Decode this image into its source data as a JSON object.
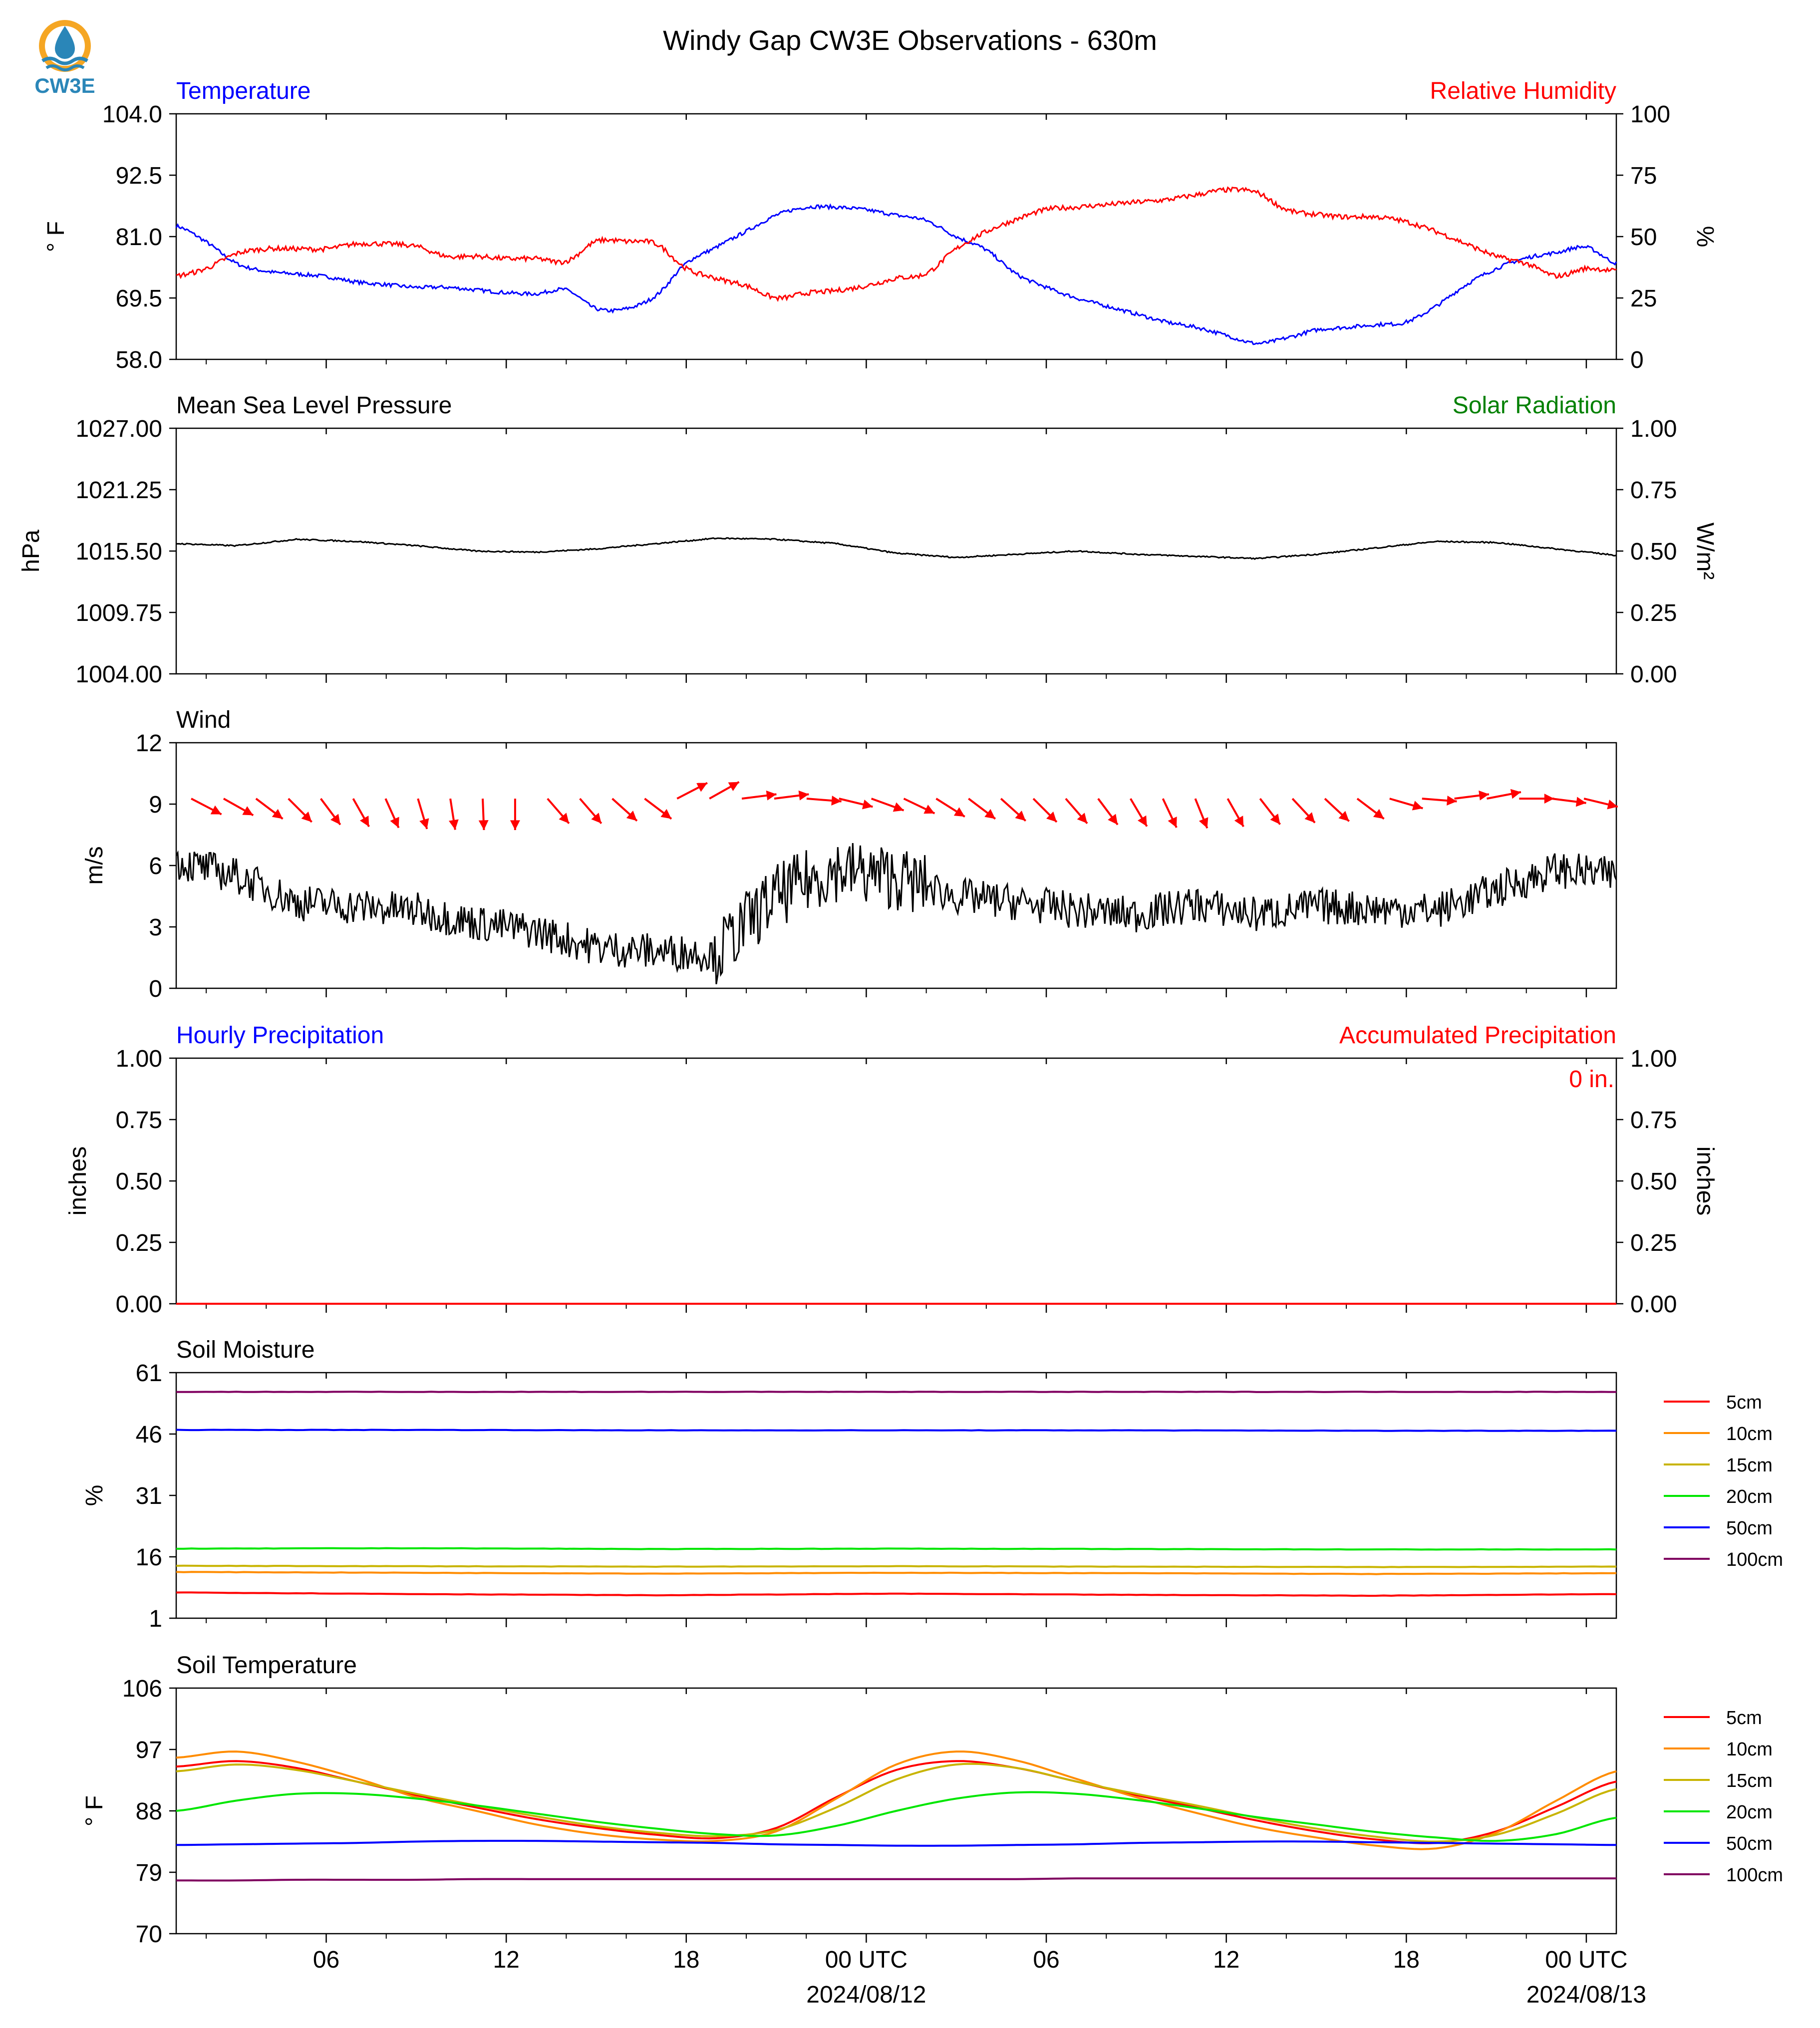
{
  "title": "Windy Gap CW3E Observations - 630m",
  "logo": {
    "text": "CW3E",
    "icon": "cw3e-logo-icon"
  },
  "x_axis": {
    "range_hours": [
      0,
      48
    ],
    "ticks": [
      {
        "h": 5,
        "label": "06",
        "sub": ""
      },
      {
        "h": 11,
        "label": "12",
        "sub": ""
      },
      {
        "h": 17,
        "label": "18",
        "sub": ""
      },
      {
        "h": 23,
        "label": "00 UTC",
        "sub": "2024/08/12"
      },
      {
        "h": 29,
        "label": "06",
        "sub": ""
      },
      {
        "h": 35,
        "label": "12",
        "sub": ""
      },
      {
        "h": 41,
        "label": "18",
        "sub": ""
      },
      {
        "h": 47,
        "label": "00 UTC",
        "sub": "2024/08/13"
      }
    ]
  },
  "panels": {
    "temp": {
      "left_title": "Temperature",
      "right_title": "Relative Humidity",
      "left_color": "#0000ff",
      "right_color": "#ff0000",
      "ylabel_left": "° F",
      "ylabel_right": "%",
      "ylim_left": [
        58.0,
        104.0
      ],
      "ylim_right": [
        0,
        100
      ],
      "ticks_left": [
        "58.0",
        "69.5",
        "81.0",
        "92.5",
        "104.0"
      ],
      "ticks_right": [
        "0",
        "25",
        "50",
        "75",
        "100"
      ]
    },
    "pressure": {
      "left_title": "Mean Sea Level Pressure",
      "right_title": "Solar Radiation",
      "left_color": "#000000",
      "right_color": "#008000",
      "ylabel_left": "hPa",
      "ylabel_right": "W/m²",
      "ylim_left": [
        1004.0,
        1027.0
      ],
      "ylim_right": [
        0,
        1
      ],
      "ticks_left": [
        "1004.00",
        "1009.75",
        "1015.50",
        "1021.25",
        "1027.00"
      ],
      "ticks_right": [
        "0.00",
        "0.25",
        "0.50",
        "0.75",
        "1.00"
      ]
    },
    "wind": {
      "left_title": "Wind",
      "ylabel_left": "m/s",
      "ylim_left": [
        0,
        12
      ],
      "ticks_left": [
        "0",
        "3",
        "6",
        "9",
        "12"
      ]
    },
    "precip": {
      "left_title": "Hourly Precipitation",
      "right_title": "Accumulated Precipitation",
      "left_color": "#0000ff",
      "right_color": "#ff0000",
      "ylabel_left": "inches",
      "ylabel_right": "inches",
      "ylim_left": [
        0,
        1
      ],
      "ylim_right": [
        0,
        1
      ],
      "ticks_left": [
        "0.00",
        "0.25",
        "0.50",
        "0.75",
        "1.00"
      ],
      "ticks_right": [
        "0.00",
        "0.25",
        "0.50",
        "0.75",
        "1.00"
      ],
      "accum_text": "0 in."
    },
    "soil_moisture": {
      "left_title": "Soil Moisture",
      "ylabel_left": "%",
      "ylim_left": [
        1,
        61
      ],
      "ticks_left": [
        "1",
        "16",
        "31",
        "46",
        "61"
      ]
    },
    "soil_temp": {
      "left_title": "Soil Temperature",
      "ylabel_left": "° F",
      "ylim_left": [
        70,
        106
      ],
      "ticks_left": [
        "70",
        "79",
        "88",
        "97",
        "106"
      ]
    }
  },
  "legend": [
    {
      "label": "5cm",
      "color": "#ff0000"
    },
    {
      "label": "10cm",
      "color": "#ff8c00"
    },
    {
      "label": "15cm",
      "color": "#c8b400"
    },
    {
      "label": "20cm",
      "color": "#00e600"
    },
    {
      "label": "50cm",
      "color": "#0000ff"
    },
    {
      "label": "100cm",
      "color": "#800060"
    }
  ],
  "chart_data": [
    {
      "type": "line",
      "title": "Temperature / Relative Humidity",
      "x_unit": "hours since 2024/08/11 01 UTC",
      "x": [
        0,
        1,
        2,
        3,
        4,
        5,
        6,
        7,
        8,
        9,
        10,
        11,
        12,
        13,
        14,
        15,
        16,
        17,
        18,
        19,
        20,
        21,
        22,
        23,
        24,
        25,
        26,
        27,
        28,
        29,
        30,
        31,
        32,
        33,
        34,
        35,
        36,
        37,
        38,
        39,
        40,
        41,
        42,
        43,
        44,
        45,
        46,
        47,
        48
      ],
      "series": [
        {
          "name": "Temperature",
          "axis": "left",
          "color": "#0000ff",
          "values": [
            83,
            80,
            76,
            74.5,
            74,
            73.5,
            72.5,
            72,
            71.5,
            71.5,
            71,
            70.5,
            70.3,
            71,
            67.5,
            67.5,
            70,
            76,
            79,
            82,
            85,
            86.5,
            86.5,
            86,
            85,
            84,
            81,
            78.5,
            74,
            71.5,
            69.5,
            68,
            66.5,
            65,
            64,
            62.5,
            61,
            62,
            63.5,
            64,
            64.5,
            65,
            68,
            72,
            75,
            77,
            78,
            79,
            76
          ]
        },
        {
          "name": "Relative Humidity",
          "axis": "right",
          "color": "#ff0000",
          "values": [
            34,
            37,
            43,
            45,
            45,
            45,
            47,
            47,
            46,
            42,
            42,
            41,
            41,
            40,
            48,
            48,
            47,
            37,
            33,
            30,
            25,
            27,
            28,
            30,
            33,
            35,
            45,
            52,
            57,
            61,
            62,
            63,
            64,
            65,
            67,
            69,
            68,
            61,
            59,
            58,
            58,
            56,
            52,
            47,
            42,
            39,
            34,
            37,
            36
          ]
        }
      ]
    },
    {
      "type": "line",
      "title": "Mean Sea Level Pressure",
      "x": [
        0,
        2,
        4,
        6,
        8,
        10,
        12,
        14,
        16,
        18,
        20,
        22,
        24,
        26,
        28,
        30,
        32,
        34,
        36,
        38,
        40,
        42,
        44,
        46,
        48
      ],
      "series": [
        {
          "name": "Mean Sea Level Pressure",
          "axis": "left",
          "color": "#000000",
          "values": [
            1016.2,
            1016.0,
            1016.6,
            1016.4,
            1016.0,
            1015.5,
            1015.4,
            1015.7,
            1016.2,
            1016.7,
            1016.6,
            1016.2,
            1015.3,
            1014.9,
            1015.2,
            1015.5,
            1015.2,
            1015.0,
            1014.8,
            1015.2,
            1015.8,
            1016.4,
            1016.3,
            1015.7,
            1015.1
          ]
        }
      ]
    },
    {
      "type": "line",
      "title": "Wind",
      "x": [
        0,
        2,
        4,
        6,
        8,
        10,
        12,
        14,
        16,
        18,
        19,
        20,
        21,
        22,
        23,
        24,
        26,
        28,
        30,
        32,
        34,
        36,
        38,
        40,
        42,
        44,
        46,
        48
      ],
      "series": [
        {
          "name": "Wind speed",
          "axis": "left",
          "color": "#000000",
          "values": [
            6.2,
            5.5,
            4.2,
            4.0,
            3.8,
            3.2,
            2.8,
            2.0,
            1.8,
            1.7,
            3.2,
            4.5,
            5.2,
            5.8,
            5.6,
            5.4,
            4.5,
            4.2,
            3.8,
            3.6,
            4.1,
            3.6,
            4.0,
            3.9,
            3.8,
            4.8,
            5.8,
            5.5
          ]
        }
      ],
      "wind_arrows_deg": [
        300,
        302,
        310,
        318,
        326,
        333,
        338,
        345,
        352,
        358,
        0,
        322,
        322,
        315,
        310,
        240,
        238,
        262,
        262,
        275,
        285,
        292,
        298,
        305,
        310,
        315,
        318,
        322,
        326,
        332,
        337,
        340,
        333,
        325,
        320,
        316,
        310,
        288,
        275,
        262,
        258,
        270,
        278,
        285
      ]
    },
    {
      "type": "line",
      "title": "Hourly Precipitation / Accumulated Precipitation",
      "x": [
        0,
        48
      ],
      "series": [
        {
          "name": "Hourly Precipitation",
          "axis": "left",
          "color": "#0000ff",
          "values": [
            0,
            0
          ]
        },
        {
          "name": "Accumulated Precipitation",
          "axis": "right",
          "color": "#ff0000",
          "values": [
            0,
            0
          ]
        }
      ]
    },
    {
      "type": "line",
      "title": "Soil Moisture",
      "x": [
        0,
        8,
        16,
        24,
        32,
        40,
        48
      ],
      "series": [
        {
          "name": "5cm",
          "color": "#ff0000",
          "values": [
            7.3,
            6.9,
            6.6,
            7.0,
            6.7,
            6.5,
            6.9
          ]
        },
        {
          "name": "10cm",
          "color": "#ff8c00",
          "values": [
            12.3,
            12.1,
            11.9,
            12.1,
            12.0,
            11.8,
            12.0
          ]
        },
        {
          "name": "15cm",
          "color": "#c8b400",
          "values": [
            13.8,
            13.7,
            13.6,
            13.7,
            13.6,
            13.5,
            13.6
          ]
        },
        {
          "name": "20cm",
          "color": "#00e600",
          "values": [
            18.0,
            18.1,
            17.9,
            18.0,
            17.9,
            17.8,
            17.8
          ]
        },
        {
          "name": "50cm",
          "color": "#0000ff",
          "values": [
            47.0,
            47.0,
            46.9,
            46.9,
            46.9,
            46.8,
            46.8
          ]
        },
        {
          "name": "100cm",
          "color": "#800060",
          "values": [
            56.3,
            56.3,
            56.3,
            56.3,
            56.3,
            56.3,
            56.3
          ]
        }
      ]
    },
    {
      "type": "line",
      "title": "Soil Temperature",
      "x": [
        0,
        2,
        4,
        6,
        8,
        10,
        12,
        14,
        16,
        18,
        20,
        22,
        24,
        26,
        28,
        30,
        32,
        34,
        36,
        38,
        40,
        42,
        44,
        46,
        48
      ],
      "series": [
        {
          "name": "5cm",
          "color": "#ff0000",
          "values": [
            94.5,
            95.3,
            94.3,
            92.3,
            90.3,
            88.5,
            86.8,
            85.5,
            84.5,
            84.0,
            85.5,
            90.0,
            94.0,
            95.3,
            94.3,
            92.3,
            90.3,
            88.5,
            86.6,
            85.0,
            83.8,
            83.3,
            85.0,
            88.6,
            92.3
          ]
        },
        {
          "name": "10cm",
          "color": "#ff8c00",
          "values": [
            95.8,
            96.7,
            95.2,
            92.8,
            90.0,
            88.0,
            86.0,
            84.6,
            83.8,
            83.6,
            85.0,
            89.8,
            94.8,
            96.7,
            95.4,
            92.7,
            90.0,
            87.7,
            85.6,
            84.1,
            82.9,
            82.5,
            84.8,
            89.5,
            93.8
          ]
        },
        {
          "name": "15cm",
          "color": "#c8b400",
          "values": [
            93.8,
            94.8,
            94.0,
            92.3,
            90.5,
            88.8,
            87.2,
            85.8,
            84.8,
            84.3,
            85.2,
            88.5,
            92.6,
            94.8,
            94.3,
            92.3,
            90.5,
            88.8,
            87.0,
            85.4,
            84.2,
            83.5,
            84.5,
            87.6,
            91.2
          ]
        },
        {
          "name": "20cm",
          "color": "#00e600",
          "values": [
            88.0,
            89.5,
            90.5,
            90.5,
            89.8,
            88.8,
            87.6,
            86.4,
            85.4,
            84.6,
            84.4,
            85.8,
            88.0,
            89.8,
            90.7,
            90.5,
            89.6,
            88.4,
            87.1,
            86.0,
            84.9,
            84.1,
            83.6,
            84.6,
            87.0
          ]
        },
        {
          "name": "50cm",
          "color": "#0000ff",
          "values": [
            83.0,
            83.1,
            83.2,
            83.3,
            83.5,
            83.6,
            83.6,
            83.5,
            83.4,
            83.3,
            83.1,
            83.0,
            82.9,
            82.9,
            83.0,
            83.1,
            83.3,
            83.4,
            83.5,
            83.5,
            83.4,
            83.3,
            83.2,
            83.1,
            83.0
          ]
        },
        {
          "name": "100cm",
          "color": "#800060",
          "values": [
            77.8,
            77.8,
            77.9,
            77.9,
            77.9,
            78.0,
            78.0,
            78.0,
            78.0,
            78.0,
            78.0,
            78.0,
            78.0,
            78.0,
            78.0,
            78.1,
            78.1,
            78.1,
            78.1,
            78.1,
            78.1,
            78.1,
            78.1,
            78.1,
            78.1
          ]
        }
      ]
    }
  ]
}
